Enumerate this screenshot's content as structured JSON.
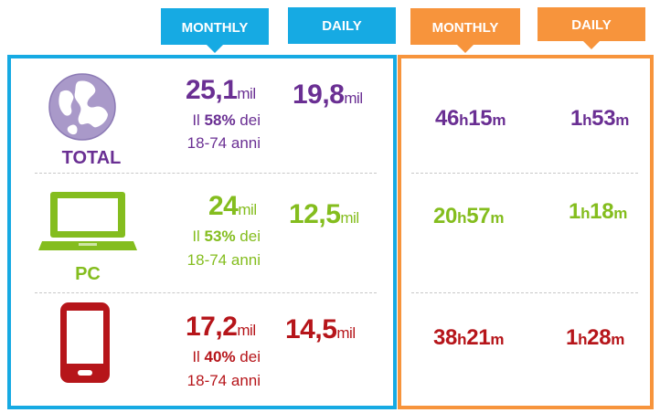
{
  "headers": {
    "reach_monthly": "MONTHLY",
    "reach_daily": "DAILY",
    "time_monthly": "MONTHLY",
    "time_daily": "DAILY"
  },
  "colors": {
    "blue": "#16aae3",
    "orange": "#f7943c",
    "purple": "#6a2f93",
    "green": "#84bd1e",
    "red": "#b6151a"
  },
  "rows": {
    "total": {
      "label": "TOTAL",
      "icon": "globe-icon",
      "monthly_value": "25,1",
      "monthly_unit": "mil",
      "share_prefix": "Il ",
      "share_pct": "58%",
      "share_suffix": " dei",
      "share_range": "18-74 anni",
      "daily_value": "19,8",
      "daily_unit": "mil",
      "time_monthly_h": "46",
      "time_monthly_m": "15",
      "time_daily_h": "1",
      "time_daily_m": "53"
    },
    "pc": {
      "label": "PC",
      "icon": "laptop-icon",
      "monthly_value": "24",
      "monthly_unit": "mil",
      "share_prefix": "Il ",
      "share_pct": "53%",
      "share_suffix": " dei",
      "share_range": "18-74 anni",
      "daily_value": "12,5",
      "daily_unit": "mil",
      "time_monthly_h": "20",
      "time_monthly_m": "57",
      "time_daily_h": "1",
      "time_daily_m": "18"
    },
    "mobile": {
      "label": "",
      "icon": "smartphone-icon",
      "monthly_value": "17,2",
      "monthly_unit": "mil",
      "share_prefix": "Il ",
      "share_pct": "40%",
      "share_suffix": " dei",
      "share_range": "18-74 anni",
      "daily_value": "14,5",
      "daily_unit": "mil",
      "time_monthly_h": "38",
      "time_monthly_m": "21",
      "time_daily_h": "1",
      "time_daily_m": "28"
    }
  },
  "time_units": {
    "hours": "h",
    "minutes": "m"
  }
}
